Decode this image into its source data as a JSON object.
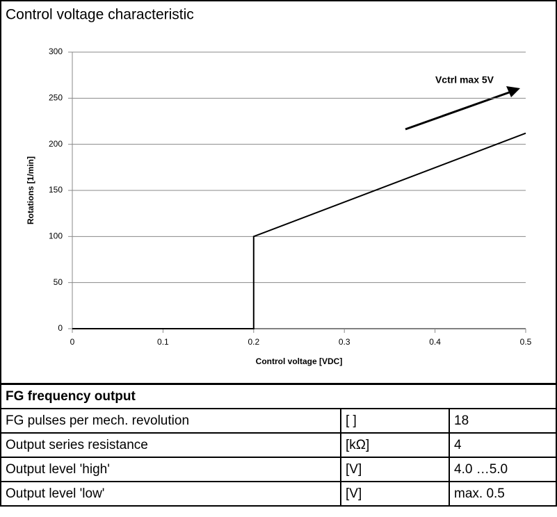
{
  "chart_data": {
    "type": "line",
    "title": "Control voltage characteristic",
    "xlabel": "Control voltage [VDC]",
    "ylabel": "Rotations [1/min]",
    "annotation": "Vctrl max 5V",
    "x": [
      0,
      0.2,
      0.2,
      0.5
    ],
    "values": [
      0,
      0,
      100,
      212
    ],
    "color": "#000000",
    "xlim": [
      0,
      0.5
    ],
    "xticks": [
      0,
      0.1,
      0.2,
      0.3,
      0.4,
      0.5
    ],
    "ylim": [
      0,
      300
    ],
    "yticks": [
      0,
      50,
      100,
      150,
      200,
      250,
      300
    ],
    "grid": true
  },
  "table": {
    "title": "FG frequency output",
    "rows": [
      [
        "FG pulses per mech. revolution",
        "[ ]",
        "18"
      ],
      [
        "Output series resistance",
        "[kΩ]",
        "4"
      ],
      [
        "Output level 'high'",
        "[V]",
        "4.0 …5.0"
      ],
      [
        "Output level 'low'",
        "[V]",
        "max. 0.5"
      ]
    ]
  }
}
